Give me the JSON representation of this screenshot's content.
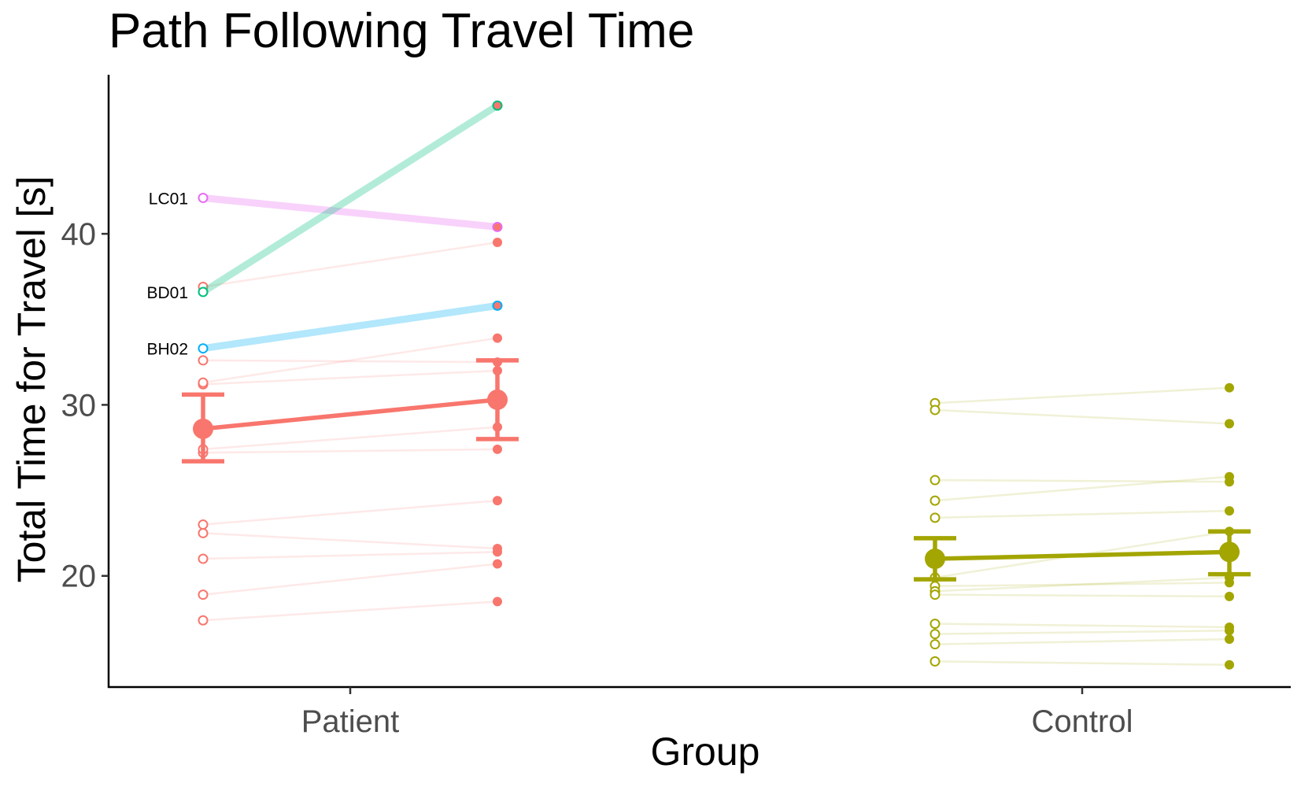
{
  "chart_data": {
    "type": "line",
    "title": "Path Following Travel Time",
    "xlabel": "Group",
    "ylabel": "Total Time for Travel [s]",
    "categories": [
      "Patient",
      "Control"
    ],
    "ylim": [
      13.5,
      49.3
    ],
    "yticks": [
      20,
      30,
      40
    ],
    "grid": false,
    "legend": "none",
    "colors": {
      "patient": "#F8766D",
      "control": "#A3A500"
    },
    "series": [
      {
        "name": "Patient",
        "color": "#F8766D",
        "mean": {
          "pre": 28.6,
          "post": 30.3
        },
        "error": {
          "pre": [
            26.7,
            30.6
          ],
          "post": [
            28.0,
            32.6
          ]
        },
        "subjects": [
          {
            "pre": 17.4,
            "post": 18.5
          },
          {
            "pre": 18.9,
            "post": 20.7
          },
          {
            "pre": 21.0,
            "post": 21.4
          },
          {
            "pre": 22.5,
            "post": 21.6
          },
          {
            "pre": 23.0,
            "post": 24.4
          },
          {
            "pre": 27.2,
            "post": 27.4
          },
          {
            "pre": 27.4,
            "post": 28.7
          },
          {
            "pre": 31.2,
            "post": 32.0
          },
          {
            "pre": 32.6,
            "post": 32.5
          },
          {
            "pre": 36.9,
            "post": 39.5
          },
          {
            "pre": 31.3,
            "post": 33.9
          }
        ],
        "highlighted": [
          {
            "label": "LC01",
            "pre": 42.1,
            "post": 40.4,
            "color": "#E76BF3"
          },
          {
            "label": "BD01",
            "pre": 36.6,
            "post": 47.5,
            "color": "#00BF7D"
          },
          {
            "label": "BH02",
            "pre": 33.3,
            "post": 35.8,
            "color": "#00B0F6"
          }
        ]
      },
      {
        "name": "Control",
        "color": "#A3A500",
        "mean": {
          "pre": 21.0,
          "post": 21.4
        },
        "error": {
          "pre": [
            19.8,
            22.2
          ],
          "post": [
            20.1,
            22.6
          ]
        },
        "subjects": [
          {
            "pre": 30.1,
            "post": 31.0
          },
          {
            "pre": 29.7,
            "post": 28.9
          },
          {
            "pre": 25.6,
            "post": 25.5
          },
          {
            "pre": 24.4,
            "post": 25.8
          },
          {
            "pre": 23.4,
            "post": 23.8
          },
          {
            "pre": 19.9,
            "post": 22.6
          },
          {
            "pre": 19.4,
            "post": 19.6
          },
          {
            "pre": 19.1,
            "post": 19.9
          },
          {
            "pre": 18.9,
            "post": 18.8
          },
          {
            "pre": 17.2,
            "post": 17.0
          },
          {
            "pre": 16.6,
            "post": 16.8
          },
          {
            "pre": 16.0,
            "post": 16.3
          },
          {
            "pre": 15.0,
            "post": 14.8
          }
        ]
      }
    ]
  }
}
